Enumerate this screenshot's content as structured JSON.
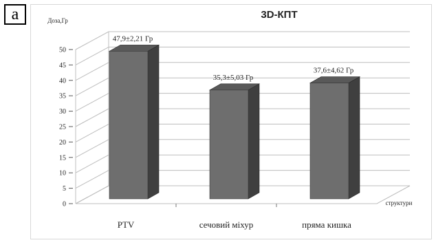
{
  "panel_label": "а",
  "chart_data": {
    "type": "bar",
    "title": "3D-КПТ",
    "ylabel": "Доза,Гр",
    "xlabel": "структури",
    "categories": [
      "PTV",
      "сечовий міхур",
      "пряма кишка"
    ],
    "values": [
      47.9,
      35.3,
      37.6
    ],
    "data_labels": [
      "47,9±2,21 Гр",
      "35,3±5,03 Гр",
      "37,6±4,62 Гр"
    ],
    "ylim": [
      0,
      50
    ],
    "yticks": [
      "0",
      "5",
      "10",
      "15",
      "20",
      "25",
      "30",
      "35",
      "40",
      "45",
      "50"
    ],
    "style": "3d-column",
    "grid": true,
    "bar_color": "#6e6e6e"
  }
}
